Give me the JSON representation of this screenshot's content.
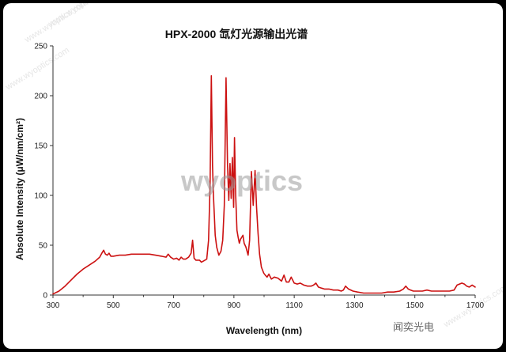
{
  "chart_data": {
    "type": "line",
    "title": "HPX-2000 氙灯光源输出光谱",
    "xlabel": "Wavelength (nm)",
    "ylabel": "Absolute Intensity  (μW/nm/cm²)",
    "xlim": [
      300,
      1700
    ],
    "ylim": [
      0,
      250
    ],
    "xticks": [
      300,
      500,
      700,
      900,
      1100,
      1300,
      1500,
      1700
    ],
    "yticks": [
      0,
      50,
      100,
      150,
      200,
      250
    ],
    "grid": false,
    "line_color": "#cc1111",
    "series": [
      {
        "x": [
          300,
          320,
          340,
          360,
          380,
          400,
          420,
          440,
          455,
          462,
          468,
          474,
          480,
          486,
          492,
          500,
          520,
          540,
          560,
          580,
          600,
          620,
          640,
          660,
          675,
          682,
          690,
          700,
          710,
          718,
          725,
          732,
          740,
          750,
          758,
          763,
          768,
          774,
          780,
          786,
          792,
          798,
          804,
          810,
          816,
          821,
          825,
          829,
          832,
          835,
          838,
          843,
          850,
          857,
          863,
          868,
          874,
          879,
          883,
          887,
          891,
          895,
          899,
          902,
          906,
          910,
          914,
          918,
          922,
          926,
          930,
          934,
          940,
          947,
          952,
          958,
          964,
          970,
          975,
          980,
          985,
          988,
          991,
          995,
          999,
          1004,
          1010,
          1016,
          1024,
          1034,
          1046,
          1058,
          1066,
          1074,
          1082,
          1090,
          1100,
          1110,
          1120,
          1132,
          1144,
          1156,
          1164,
          1172,
          1180,
          1190,
          1200,
          1215,
          1230,
          1245,
          1256,
          1263,
          1270,
          1280,
          1295,
          1310,
          1330,
          1350,
          1370,
          1390,
          1410,
          1430,
          1450,
          1462,
          1470,
          1478,
          1486,
          1495,
          1510,
          1525,
          1540,
          1555,
          1570,
          1585,
          1600,
          1615,
          1630,
          1640,
          1648,
          1656,
          1664,
          1672,
          1680,
          1690,
          1700
        ],
        "y": [
          1,
          4,
          9,
          15,
          21,
          26,
          30,
          34,
          38,
          42,
          45,
          41,
          40,
          42,
          39,
          39,
          40,
          40,
          41,
          41,
          41,
          41,
          40,
          39,
          38,
          41,
          38,
          36,
          37,
          35,
          38,
          36,
          36,
          38,
          42,
          55,
          37,
          35,
          35,
          35,
          33,
          34,
          35,
          36,
          55,
          110,
          220,
          130,
          101,
          80,
          60,
          48,
          40,
          44,
          55,
          90,
          218,
          130,
          95,
          132,
          97,
          138,
          88,
          158,
          100,
          65,
          58,
          52,
          56,
          58,
          60,
          52,
          48,
          40,
          55,
          124,
          90,
          125,
          88,
          62,
          41,
          35,
          28,
          25,
          22,
          20,
          18,
          21,
          16,
          18,
          17,
          14,
          20,
          13,
          13,
          18,
          12,
          11,
          12,
          10,
          9,
          9,
          10,
          12,
          8,
          7,
          6,
          6,
          5,
          5,
          4,
          5,
          9,
          6,
          4,
          3,
          2,
          2,
          2,
          2,
          3,
          3,
          4,
          6,
          9,
          6,
          5,
          4,
          4,
          4,
          5,
          4,
          4,
          4,
          4,
          4,
          5,
          10,
          11,
          12,
          11,
          9,
          8,
          10,
          8
        ]
      }
    ]
  },
  "watermark": {
    "main": "wyoptics",
    "corner": "闻奕光电",
    "faint": "www.wyoptics.com"
  }
}
